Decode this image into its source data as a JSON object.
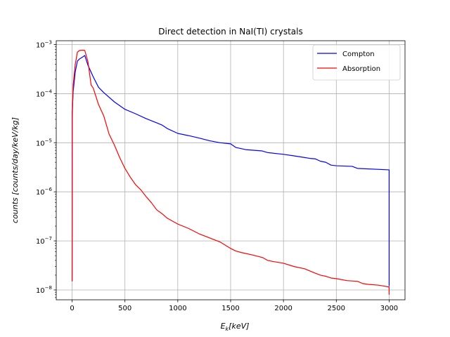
{
  "chart_data": {
    "type": "line",
    "title": "Direct detection in NaI(TI) crystals",
    "xlabel": "E_k[keV]",
    "ylabel": "counts [counts/day/keV/kg]",
    "xlim": [
      -150,
      3150
    ],
    "ylim": [
      6.3e-09,
      0.0012
    ],
    "yscale": "log",
    "grid": true,
    "legend": "top-right",
    "x_ticks": [
      0,
      500,
      1000,
      1500,
      2000,
      2500,
      3000
    ],
    "y_ticks": [
      {
        "value": 1e-08,
        "label": "10^-8"
      },
      {
        "value": 1e-07,
        "label": "10^-7"
      },
      {
        "value": 1e-06,
        "label": "10^-6"
      },
      {
        "value": 1e-05,
        "label": "10^-5"
      },
      {
        "value": 0.0001,
        "label": "10^-4"
      },
      {
        "value": 0.001,
        "label": "10^-3"
      }
    ],
    "series": [
      {
        "name": "Compton",
        "color": "#0000ff",
        "x": [
          0,
          1,
          10,
          30,
          50,
          70,
          100,
          120,
          150,
          200,
          250,
          300,
          400,
          500,
          600,
          700,
          800,
          850,
          900,
          1000,
          1100,
          1200,
          1300,
          1400,
          1500,
          1550,
          1650,
          1800,
          1850,
          2000,
          2100,
          2200,
          2250,
          2300,
          2350,
          2400,
          2450,
          2500,
          2650,
          2700,
          3000,
          3000
        ],
        "y": [
          1.5e-08,
          4e-05,
          0.00011,
          0.00028,
          0.00046,
          0.00051,
          0.00056,
          0.0006,
          0.00038,
          0.00022,
          0.000135,
          0.000105,
          6.8e-05,
          4.8e-05,
          3.9e-05,
          3.1e-05,
          2.55e-05,
          2.3e-05,
          1.95e-05,
          1.55e-05,
          1.4e-05,
          1.25e-05,
          1.1e-05,
          1e-05,
          9.5e-06,
          8e-06,
          7.2e-06,
          6.8e-06,
          6.3e-06,
          5.8e-06,
          5.4e-06,
          5e-06,
          4.8e-06,
          4.7e-06,
          4.2e-06,
          4e-06,
          3.5e-06,
          3.4e-06,
          3.3e-06,
          3e-06,
          2.8e-06,
          1.2e-08
        ]
      },
      {
        "name": "Absorption",
        "color": "#ff0000",
        "x": [
          0,
          1,
          10,
          30,
          50,
          70,
          100,
          120,
          150,
          180,
          200,
          250,
          300,
          350,
          400,
          450,
          500,
          550,
          600,
          650,
          700,
          750,
          800,
          850,
          900,
          1000,
          1100,
          1200,
          1300,
          1400,
          1500,
          1550,
          1600,
          1700,
          1800,
          1850,
          1900,
          2000,
          2100,
          2200,
          2300,
          2350,
          2400,
          2450,
          2500,
          2600,
          2700,
          2750,
          2800,
          2900,
          2950,
          3000,
          3000
        ],
        "y": [
          1.5e-08,
          3e-05,
          0.00015,
          0.0004,
          0.0007,
          0.00076,
          0.00077,
          0.00076,
          0.00045,
          0.00015,
          0.00013,
          6e-05,
          3.5e-05,
          1.5e-05,
          9e-06,
          5e-06,
          3e-06,
          2e-06,
          1.4e-06,
          1.1e-06,
          8e-07,
          6e-07,
          4.3e-07,
          3.6e-07,
          2.9e-07,
          2.2e-07,
          1.8e-07,
          1.4e-07,
          1.15e-07,
          9.5e-08,
          7e-08,
          6.2e-08,
          5.8e-08,
          5.2e-08,
          4.6e-08,
          4e-08,
          3.8e-08,
          3.5e-08,
          3e-08,
          2.7e-08,
          2.2e-08,
          2e-08,
          1.9e-08,
          1.75e-08,
          1.7e-08,
          1.55e-08,
          1.5e-08,
          1.35e-08,
          1.3e-08,
          1.25e-08,
          1.2e-08,
          1.15e-08,
          8e-09
        ]
      }
    ]
  }
}
